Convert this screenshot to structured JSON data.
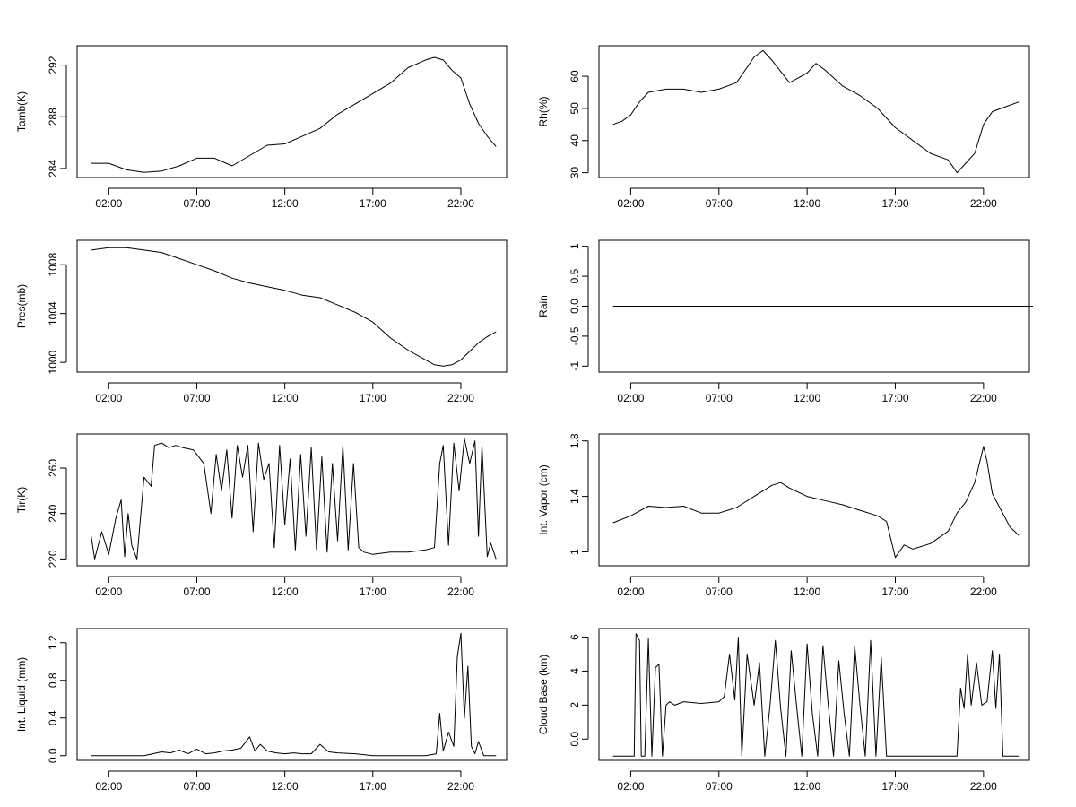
{
  "x_ticks": [
    "02:00",
    "07:00",
    "12:00",
    "17:00",
    "22:00"
  ],
  "x_tick_hours": [
    2,
    7,
    12,
    17,
    22
  ],
  "x_range_hours": [
    0.2,
    24.6
  ],
  "chart_data": [
    {
      "id": "tamb",
      "type": "line",
      "ylabel": "Tamb(K)",
      "ylim": [
        283.3,
        293.5
      ],
      "yticks": [
        284,
        288,
        292
      ],
      "series": [
        {
          "x": [
            1.0,
            2.0,
            3.0,
            4.0,
            5.0,
            6.0,
            7.0,
            8.0,
            9.0,
            10.0,
            11.0,
            12.0,
            13.0,
            14.0,
            15.0,
            16.0,
            17.0,
            18.0,
            19.0,
            20.0,
            20.5,
            21.0,
            21.5,
            22.0,
            22.5,
            23.0,
            23.5,
            24.0
          ],
          "y": [
            284.4,
            284.4,
            283.9,
            283.7,
            283.8,
            284.2,
            284.8,
            284.8,
            284.2,
            285.0,
            285.8,
            285.9,
            286.5,
            287.1,
            288.2,
            289.0,
            289.8,
            290.6,
            291.8,
            292.4,
            292.6,
            292.4,
            291.6,
            291.0,
            289.0,
            287.5,
            286.5,
            285.7
          ]
        }
      ]
    },
    {
      "id": "rh",
      "type": "line",
      "ylabel": "Rh(%)",
      "ylim": [
        28.5,
        69.5
      ],
      "yticks": [
        30,
        40,
        50,
        60
      ],
      "series": [
        {
          "x": [
            1.0,
            1.5,
            2.0,
            2.5,
            3.0,
            4.0,
            5.0,
            6.0,
            7.0,
            8.0,
            8.5,
            9.0,
            9.5,
            10.0,
            11.0,
            12.0,
            12.5,
            13.0,
            14.0,
            15.0,
            16.0,
            17.0,
            18.0,
            19.0,
            20.0,
            20.5,
            21.0,
            21.5,
            22.0,
            22.5,
            23.0,
            24.0
          ],
          "y": [
            45,
            46,
            48,
            52,
            55,
            56,
            56,
            55,
            56,
            58,
            62,
            66,
            68,
            65,
            58,
            61,
            64,
            62,
            57,
            54,
            50,
            44,
            40,
            36,
            34,
            30,
            33,
            36,
            45,
            49,
            50,
            52
          ]
        }
      ]
    },
    {
      "id": "pres",
      "type": "line",
      "ylabel": "Pres(mb)",
      "ylim": [
        999.2,
        1010.0
      ],
      "yticks": [
        1000,
        1004,
        1008
      ],
      "series": [
        {
          "x": [
            1.0,
            2.0,
            3.0,
            4.0,
            5.0,
            6.0,
            7.0,
            8.0,
            9.0,
            10.0,
            11.0,
            12.0,
            13.0,
            14.0,
            15.0,
            16.0,
            17.0,
            18.0,
            19.0,
            20.0,
            20.5,
            21.0,
            21.5,
            22.0,
            22.5,
            23.0,
            23.5,
            24.0
          ],
          "y": [
            1009.2,
            1009.4,
            1009.4,
            1009.2,
            1009.0,
            1008.5,
            1008.0,
            1007.5,
            1006.9,
            1006.5,
            1006.2,
            1005.9,
            1005.5,
            1005.3,
            1004.7,
            1004.1,
            1003.3,
            1002.0,
            1001.0,
            1000.2,
            999.8,
            999.7,
            999.8,
            1000.2,
            1000.9,
            1001.6,
            1002.1,
            1002.5
          ]
        }
      ]
    },
    {
      "id": "rain",
      "type": "line",
      "ylabel": "Rain",
      "ylim": [
        -1.1,
        1.1
      ],
      "yticks": [
        -1.0,
        -0.5,
        0.0,
        0.5,
        1.0
      ],
      "series": [
        {
          "x": [
            1.0,
            24.8
          ],
          "y": [
            0.0,
            0.0
          ]
        }
      ]
    },
    {
      "id": "tir",
      "type": "line",
      "ylabel": "Tir(K)",
      "ylim": [
        217,
        275
      ],
      "yticks": [
        220,
        240,
        260
      ],
      "series": [
        {
          "x": [
            1.0,
            1.2,
            1.6,
            2.0,
            2.4,
            2.7,
            2.9,
            3.1,
            3.3,
            3.6,
            4.0,
            4.4,
            4.6,
            5.0,
            5.4,
            5.8,
            6.2,
            6.8,
            7.4,
            7.8,
            8.1,
            8.4,
            8.7,
            9.0,
            9.3,
            9.6,
            9.9,
            10.2,
            10.5,
            10.8,
            11.1,
            11.4,
            11.7,
            12.0,
            12.3,
            12.6,
            12.9,
            13.2,
            13.5,
            13.8,
            14.1,
            14.4,
            14.7,
            15.0,
            15.3,
            15.6,
            15.9,
            16.2,
            16.5,
            17.0,
            18.0,
            19.0,
            20.0,
            20.5,
            20.8,
            21.0,
            21.3,
            21.6,
            21.9,
            22.2,
            22.5,
            22.8,
            23.0,
            23.2,
            23.5,
            23.7,
            24.0
          ],
          "y": [
            230,
            220,
            232,
            222,
            238,
            246,
            221,
            240,
            226,
            220,
            256,
            252,
            270,
            271,
            269,
            270,
            269,
            268,
            262,
            240,
            266,
            250,
            268,
            238,
            270,
            256,
            270,
            232,
            271,
            255,
            262,
            225,
            270,
            235,
            264,
            224,
            266,
            230,
            269,
            224,
            265,
            223,
            262,
            228,
            270,
            224,
            262,
            225,
            223,
            222,
            223,
            223,
            224,
            225,
            262,
            270,
            226,
            271,
            250,
            273,
            262,
            272,
            230,
            270,
            221,
            227,
            220
          ]
        }
      ]
    },
    {
      "id": "vapor",
      "type": "line",
      "ylabel": "Int. Vapor (cm)",
      "ylim": [
        0.9,
        1.85
      ],
      "yticks": [
        1.0,
        1.4,
        1.8
      ],
      "series": [
        {
          "x": [
            1.0,
            2.0,
            3.0,
            4.0,
            5.0,
            6.0,
            7.0,
            8.0,
            9.0,
            10.0,
            10.5,
            11.0,
            12.0,
            13.0,
            14.0,
            15.0,
            16.0,
            16.5,
            17.0,
            17.5,
            18.0,
            19.0,
            20.0,
            20.5,
            21.0,
            21.5,
            22.0,
            22.2,
            22.5,
            23.0,
            23.5,
            24.0
          ],
          "y": [
            1.21,
            1.26,
            1.33,
            1.32,
            1.33,
            1.28,
            1.28,
            1.32,
            1.4,
            1.48,
            1.5,
            1.46,
            1.4,
            1.37,
            1.34,
            1.3,
            1.26,
            1.22,
            0.96,
            1.05,
            1.02,
            1.06,
            1.15,
            1.28,
            1.36,
            1.5,
            1.76,
            1.65,
            1.42,
            1.3,
            1.18,
            1.12
          ]
        }
      ]
    },
    {
      "id": "liquid",
      "type": "line",
      "ylabel": "Int. Liquid (mm)",
      "ylim": [
        -0.05,
        1.35
      ],
      "yticks": [
        0.0,
        0.4,
        0.8,
        1.2
      ],
      "series": [
        {
          "x": [
            1.0,
            2.0,
            3.0,
            4.0,
            4.5,
            5.0,
            5.5,
            6.0,
            6.5,
            7.0,
            7.5,
            8.0,
            8.5,
            9.0,
            9.5,
            10.0,
            10.3,
            10.6,
            11.0,
            11.5,
            12.0,
            12.5,
            13.0,
            13.5,
            14.0,
            14.5,
            15.0,
            16.0,
            17.0,
            18.0,
            19.0,
            20.0,
            20.6,
            20.8,
            21.0,
            21.3,
            21.6,
            21.8,
            22.0,
            22.2,
            22.4,
            22.6,
            22.8,
            23.0,
            23.3,
            24.0
          ],
          "y": [
            0,
            0,
            0,
            0,
            0.02,
            0.04,
            0.03,
            0.06,
            0.02,
            0.07,
            0.02,
            0.03,
            0.05,
            0.06,
            0.08,
            0.2,
            0.05,
            0.12,
            0.05,
            0.03,
            0.02,
            0.03,
            0.02,
            0.02,
            0.12,
            0.04,
            0.03,
            0.02,
            0,
            0,
            0,
            0,
            0.02,
            0.45,
            0.05,
            0.25,
            0.1,
            1.05,
            1.3,
            0.4,
            0.95,
            0.1,
            0.02,
            0.15,
            0.0,
            0.0
          ]
        }
      ]
    },
    {
      "id": "cloud",
      "type": "line",
      "ylabel": "Cloud Base (km)",
      "ylim": [
        -1.25,
        6.5
      ],
      "yticks": [
        0,
        2,
        4,
        6
      ],
      "series": [
        {
          "x": [
            1.0,
            2.0,
            2.2,
            2.3,
            2.5,
            2.6,
            2.8,
            3.0,
            3.2,
            3.4,
            3.6,
            3.8,
            4.0,
            4.2,
            4.5,
            5.0,
            6.0,
            7.0,
            7.3,
            7.6,
            7.9,
            8.1,
            8.3,
            8.6,
            9.0,
            9.3,
            9.6,
            9.9,
            10.2,
            10.5,
            10.8,
            11.1,
            11.4,
            11.7,
            12.0,
            12.3,
            12.6,
            12.9,
            13.2,
            13.5,
            13.8,
            14.1,
            14.4,
            14.7,
            15.0,
            15.3,
            15.6,
            15.9,
            16.2,
            16.5,
            17.0,
            18.0,
            19.0,
            20.0,
            20.5,
            20.7,
            20.9,
            21.1,
            21.3,
            21.6,
            21.9,
            22.2,
            22.5,
            22.7,
            22.9,
            23.1,
            23.3,
            24.0
          ],
          "y": [
            -1,
            -1,
            -1,
            6.2,
            5.8,
            -1,
            -1,
            5.9,
            -1,
            4.2,
            4.4,
            -1,
            2.0,
            2.2,
            2.0,
            2.2,
            2.1,
            2.2,
            2.5,
            5.0,
            2.3,
            6.0,
            -1,
            5.0,
            2.0,
            4.5,
            -1,
            2.0,
            5.8,
            1.8,
            -1,
            5.2,
            2.0,
            -1,
            5.6,
            1.5,
            -1,
            5.5,
            2.0,
            -1,
            4.6,
            1.5,
            -1,
            5.5,
            2.0,
            -1,
            5.8,
            -1,
            4.8,
            -1,
            -1,
            -1,
            -1,
            -1,
            -1,
            3.0,
            1.8,
            5.0,
            2.0,
            4.5,
            2.0,
            2.2,
            5.2,
            1.8,
            5.0,
            -1,
            -1,
            -1
          ]
        }
      ]
    }
  ]
}
